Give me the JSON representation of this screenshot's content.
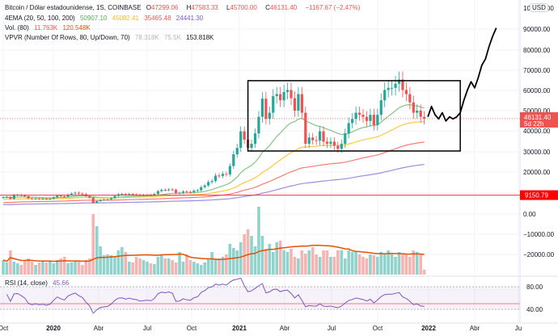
{
  "legend": {
    "symbol": "Bitcoin / Dólar estadounidense, 1S, COINBASE",
    "o_label": "O",
    "o": "47299.06",
    "h_label": "H",
    "h": "47583.33",
    "l_label": "L",
    "l": "45700.00",
    "c_label": "C",
    "c": "46131.40",
    "change": "−1167.67 (−2.47%)",
    "ema_label": "4EMA (20, 50, 100, 200)",
    "ema_values": [
      "50907.10",
      "45082.41",
      "35465.48",
      "24441.30"
    ],
    "vol_label": "Vol. (80)",
    "vol_values": [
      "11.763K",
      "120.548K"
    ],
    "vpvr_label": "VPVR (Number Of Rows, 80, Up/Down, 70)",
    "vpvr_values": [
      "78.318K",
      "75.5K",
      "153.818K"
    ],
    "rsi_label": "RSI (14, close)",
    "rsi_value": "45.66"
  },
  "colors": {
    "up": "#26a69a",
    "down": "#ef5350",
    "ema20": "#81c784",
    "ema50": "#ffc93c",
    "ema100": "#f77c72",
    "ema200": "#9c8ee0",
    "vol_ma": "#e65100",
    "rsi": "#7e57c2"
  },
  "axis": {
    "currency": "USD",
    "price_labels": [
      "100000.00",
      "90000.00",
      "80000.00",
      "70000.00",
      "60000.00",
      "50000.00",
      "40000.00",
      "30000.00",
      "20000.00",
      "0.00",
      "−10000.00",
      "−20000.00"
    ],
    "last_price": "46131.40",
    "countdown": "5d 22h",
    "hline_label": "9150.79",
    "rsi_labels": [
      "80.00",
      "40.00"
    ],
    "time_labels": [
      "Oct",
      "2020",
      "Abr",
      "Jul",
      "Oct",
      "2021",
      "Abr",
      "Jul",
      "Oct",
      "2022",
      "Abr",
      "Ju"
    ]
  },
  "chart_data": {
    "type": "candlestick",
    "title": "Bitcoin / Dólar estadounidense, 1S, COINBASE",
    "x_start": "2019-10",
    "interval": "1 week",
    "units": "thousand USD",
    "closes": [
      8.1,
      8.3,
      7.4,
      9.2,
      9.3,
      9.0,
      8.6,
      7.6,
      7.3,
      7.5,
      7.3,
      7.4,
      7.2,
      7.4,
      8.1,
      8.9,
      8.6,
      8.4,
      9.4,
      9.9,
      10.3,
      9.9,
      9.6,
      8.7,
      7.9,
      5.4,
      6.2,
      6.8,
      7.0,
      7.1,
      7.7,
      8.8,
      9.6,
      9.7,
      9.4,
      9.7,
      9.5,
      9.4,
      9.1,
      9.2,
      9.3,
      9.2,
      9.7,
      11.1,
      11.7,
      11.6,
      11.9,
      11.7,
      10.2,
      10.3,
      10.9,
      10.7,
      10.6,
      11.3,
      11.5,
      13.0,
      13.8,
      15.5,
      16.0,
      18.6,
      18.4,
      19.4,
      19.2,
      23.2,
      28.9,
      32.0,
      40.0,
      36.0,
      32.0,
      34.0,
      39.0,
      47.0,
      55.8,
      46.0,
      49.0,
      57.0,
      58.0,
      55.0,
      59.0,
      60.0,
      56.0,
      50.0,
      58.0,
      49.0,
      34.0,
      37.0,
      35.7,
      35.5,
      40.0,
      35.0,
      34.0,
      35.0,
      33.0,
      31.5,
      34.0,
      39.0,
      44.0,
      46.0,
      49.0,
      48.0,
      47.0,
      45.0,
      48.0,
      43.0,
      48.0,
      55.0,
      60.0,
      61.0,
      61.0,
      63.0,
      65.0,
      60.0,
      58.0,
      54.0,
      49.0,
      50.0,
      47.0,
      46.1
    ],
    "volumes": [
      18,
      15,
      30,
      16,
      14,
      12,
      18,
      20,
      16,
      12,
      15,
      17,
      15,
      16,
      14,
      18,
      20,
      22,
      14,
      15,
      17,
      16,
      12,
      18,
      20,
      75,
      60,
      35,
      24,
      25,
      24,
      22,
      30,
      34,
      28,
      16,
      15,
      22,
      20,
      18,
      16,
      14,
      13,
      22,
      25,
      20,
      20,
      18,
      15,
      28,
      16,
      25,
      18,
      16,
      14,
      12,
      15,
      20,
      28,
      20,
      20,
      22,
      25,
      38,
      33,
      30,
      40,
      50,
      56,
      48,
      35,
      84,
      48,
      32,
      38,
      28,
      40,
      42,
      30,
      28,
      32,
      22,
      20,
      30,
      26,
      30,
      34,
      25,
      22,
      30,
      30,
      22,
      22,
      30,
      30,
      20,
      30,
      28,
      28,
      25,
      22,
      20,
      25,
      24,
      22,
      28,
      25,
      30,
      25,
      22,
      28,
      25,
      26,
      22,
      30,
      28,
      25,
      6
    ],
    "hline": 9.15079,
    "consolidation_box": {
      "from_week": 68,
      "to_week": 127,
      "high": 64.5,
      "low": 30.5
    },
    "forecast": [
      [
        118,
        47
      ],
      [
        119,
        52
      ],
      [
        120,
        48
      ],
      [
        121,
        46
      ],
      [
        122,
        49
      ],
      [
        123,
        45
      ],
      [
        124,
        47
      ],
      [
        125,
        46
      ],
      [
        126,
        47
      ],
      [
        127,
        49
      ],
      [
        128,
        55
      ],
      [
        129,
        60
      ],
      [
        130,
        64
      ],
      [
        131,
        61
      ],
      [
        132,
        66
      ],
      [
        133,
        72
      ],
      [
        134,
        75
      ],
      [
        135,
        81
      ],
      [
        136,
        86
      ],
      [
        137,
        90
      ]
    ],
    "ylim": [
      -25,
      100
    ]
  }
}
